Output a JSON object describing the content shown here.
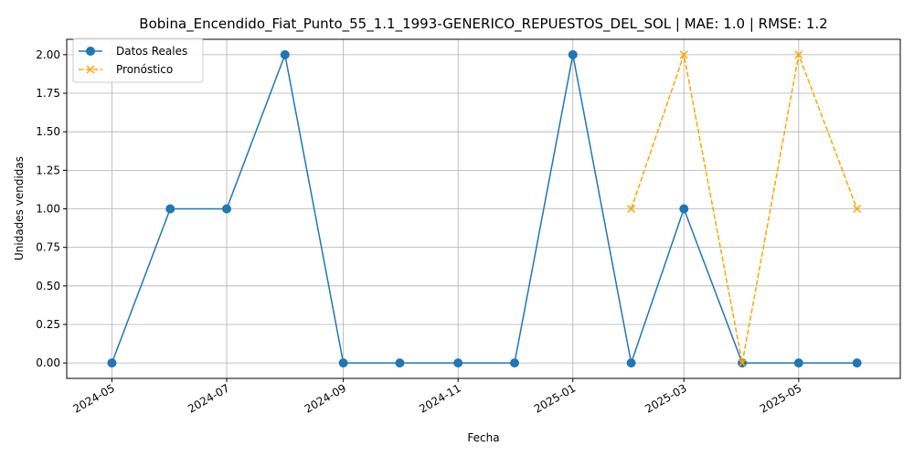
{
  "chart_data": {
    "type": "line",
    "title": "Bobina_Encendido_Fiat_Punto_55_1.1_1993-GENERICO_REPUESTOS_DEL_SOL | MAE: 1.0 | RMSE: 1.2",
    "xlabel": "Fecha",
    "ylabel": "Unidades vendidas",
    "ylim": [
      -0.1,
      2.1
    ],
    "xlim": [
      "2024-04-07",
      "2025-06-24"
    ],
    "x_ticks": [
      "2024-05",
      "2024-07",
      "2024-09",
      "2024-11",
      "2025-01",
      "2025-03",
      "2025-05"
    ],
    "y_ticks": [
      "0.00",
      "0.25",
      "0.50",
      "0.75",
      "1.00",
      "1.25",
      "1.50",
      "1.75",
      "2.00"
    ],
    "grid": true,
    "legend_position": "top-left",
    "series": [
      {
        "name": "Datos Reales",
        "color": "#1f77b4",
        "line_style": "solid",
        "marker": "circle",
        "points": [
          {
            "x": "2024-05-01",
            "y": 0
          },
          {
            "x": "2024-06-01",
            "y": 1
          },
          {
            "x": "2024-07-01",
            "y": 1
          },
          {
            "x": "2024-08-01",
            "y": 2
          },
          {
            "x": "2024-09-01",
            "y": 0
          },
          {
            "x": "2024-10-01",
            "y": 0
          },
          {
            "x": "2024-11-01",
            "y": 0
          },
          {
            "x": "2024-12-01",
            "y": 0
          },
          {
            "x": "2025-01-01",
            "y": 2
          },
          {
            "x": "2025-02-01",
            "y": 0
          },
          {
            "x": "2025-03-01",
            "y": 1
          },
          {
            "x": "2025-04-01",
            "y": 0
          },
          {
            "x": "2025-05-01",
            "y": 0
          },
          {
            "x": "2025-06-01",
            "y": 0
          }
        ]
      },
      {
        "name": "Pronóstico",
        "color": "#ffa500",
        "line_style": "dashed",
        "marker": "x",
        "points": [
          {
            "x": "2025-02-01",
            "y": 1
          },
          {
            "x": "2025-03-01",
            "y": 2
          },
          {
            "x": "2025-04-01",
            "y": 0
          },
          {
            "x": "2025-05-01",
            "y": 2
          },
          {
            "x": "2025-06-01",
            "y": 1
          }
        ]
      }
    ]
  }
}
